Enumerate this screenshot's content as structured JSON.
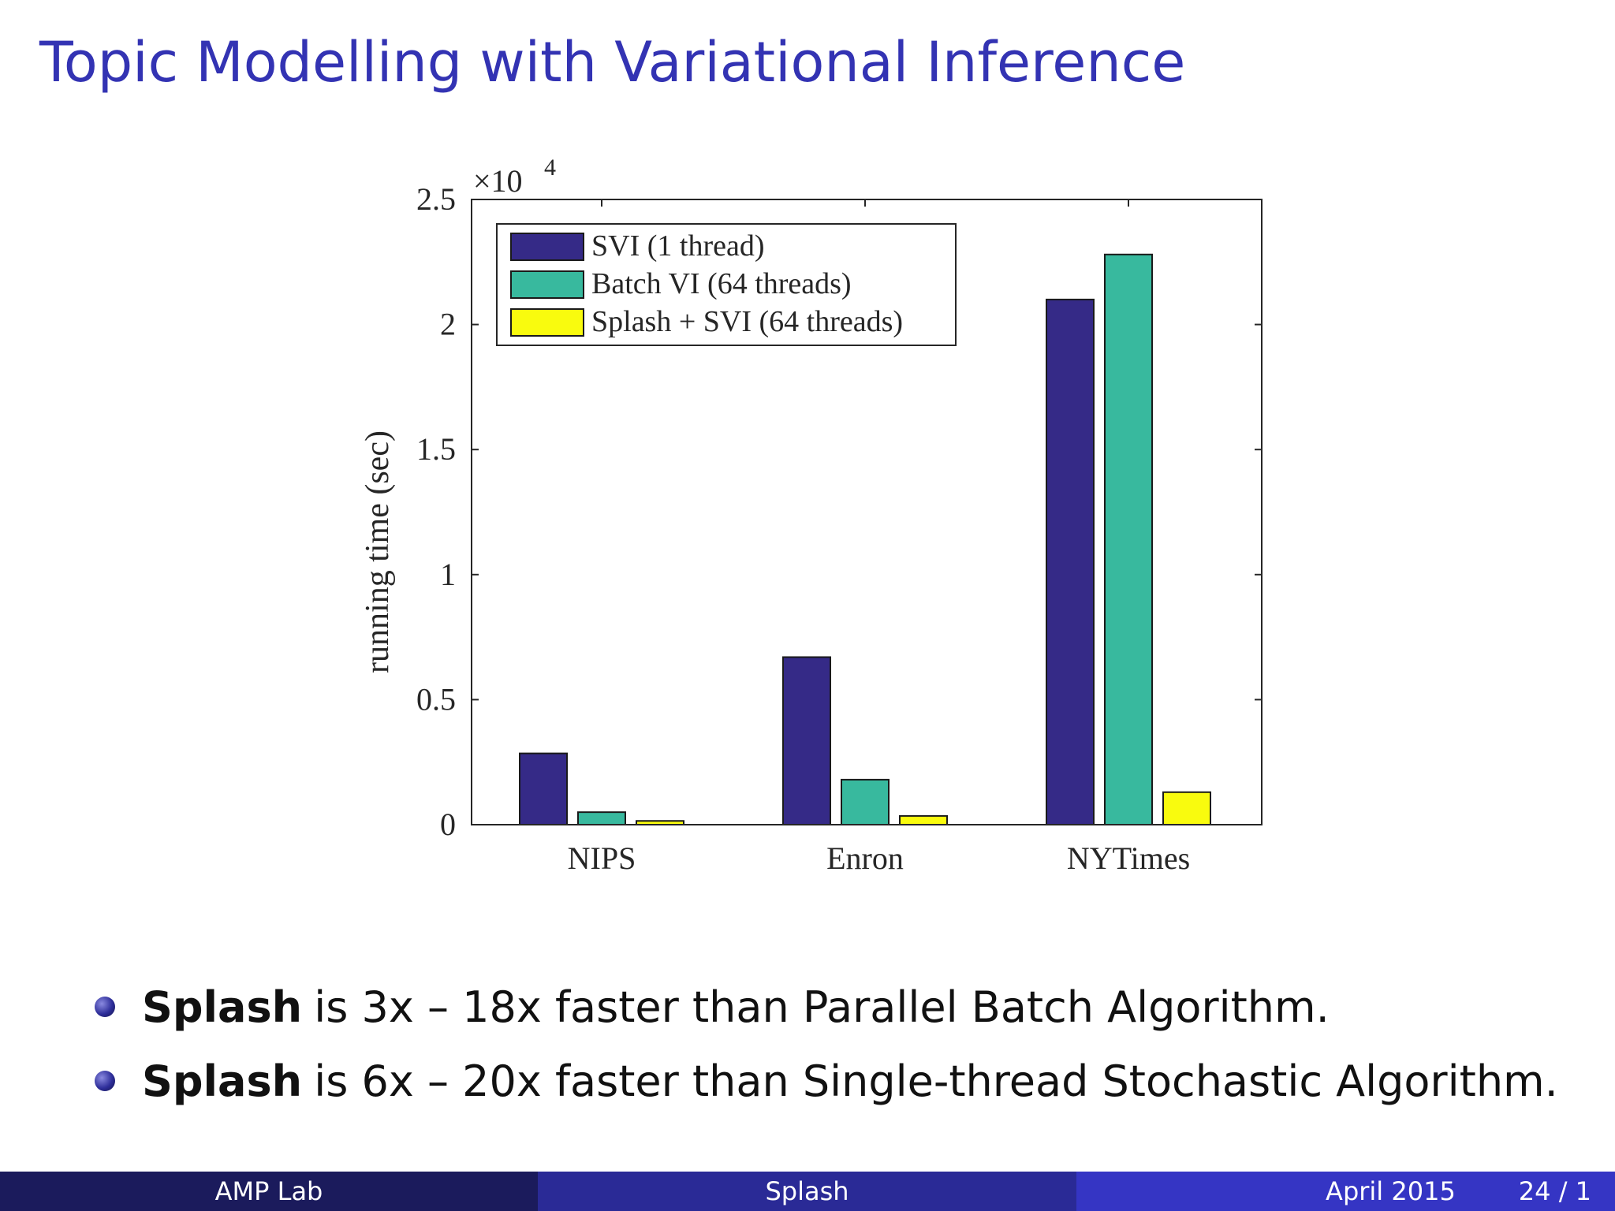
{
  "slide": {
    "title": "Topic Modelling with Variational Inference",
    "bullets": [
      {
        "bold": "Splash",
        "rest": "is 3x – 18x faster than Parallel Batch Algorithm."
      },
      {
        "bold": "Splash",
        "rest": "is 6x – 20x faster than Single-thread Stochastic Algorithm."
      }
    ],
    "footer": {
      "left": "AMP Lab",
      "center": "Splash",
      "date": "April 2015",
      "page": "24 / 1"
    }
  },
  "chart_data": {
    "type": "bar",
    "title": "",
    "xlabel": "",
    "ylabel": "running time (sec)",
    "y_multiplier": "×10",
    "y_exponent": "4",
    "ylim": [
      0,
      2.5
    ],
    "yticks": [
      "0",
      "0.5",
      "1",
      "1.5",
      "2",
      "2.5"
    ],
    "categories": [
      "NIPS",
      "Enron",
      "NYTimes"
    ],
    "series": [
      {
        "name": "SVI (1 thread)",
        "color": "#352a87",
        "values": [
          0.285,
          0.67,
          2.1
        ]
      },
      {
        "name": "Batch VI (64 threads)",
        "color": "#38b99e",
        "values": [
          0.05,
          0.18,
          2.28
        ]
      },
      {
        "name": "Splash + SVI (64 threads)",
        "color": "#f9fb0e",
        "values": [
          0.015,
          0.035,
          0.13
        ]
      }
    ],
    "legend_position": "top-left",
    "grid": false
  }
}
